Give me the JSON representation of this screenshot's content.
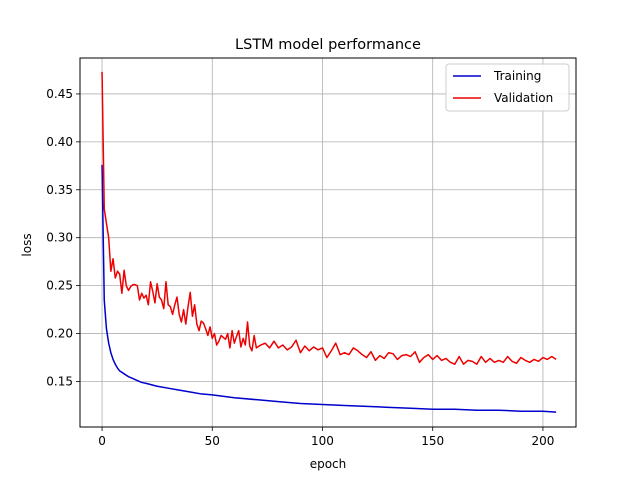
{
  "chart_data": {
    "type": "line",
    "title": "LSTM model performance",
    "xlabel": "epoch",
    "ylabel": "loss",
    "xlim": [
      -10,
      215
    ],
    "ylim": [
      0.1025,
      0.4875
    ],
    "grid": true,
    "legend_position": "top-right",
    "x_ticks": [
      0,
      50,
      100,
      150,
      200
    ],
    "x_tick_labels": [
      "0",
      "50",
      "100",
      "150",
      "200"
    ],
    "y_ticks": [
      0.15,
      0.2,
      0.25,
      0.3,
      0.35,
      0.4,
      0.45
    ],
    "y_tick_labels": [
      "0.15",
      "0.20",
      "0.25",
      "0.30",
      "0.35",
      "0.40",
      "0.45"
    ],
    "series": [
      {
        "name": "Training",
        "color": "#0000cc",
        "x": [
          0,
          1,
          2,
          3,
          4,
          5,
          6,
          7,
          8,
          10,
          12,
          14,
          16,
          18,
          20,
          25,
          30,
          35,
          40,
          45,
          50,
          60,
          70,
          80,
          90,
          100,
          110,
          120,
          130,
          140,
          150,
          160,
          170,
          180,
          190,
          200,
          206
        ],
        "values": [
          0.376,
          0.235,
          0.205,
          0.19,
          0.18,
          0.173,
          0.168,
          0.164,
          0.161,
          0.158,
          0.155,
          0.153,
          0.151,
          0.149,
          0.148,
          0.145,
          0.143,
          0.141,
          0.139,
          0.137,
          0.136,
          0.133,
          0.131,
          0.129,
          0.127,
          0.126,
          0.125,
          0.124,
          0.123,
          0.122,
          0.121,
          0.121,
          0.12,
          0.12,
          0.119,
          0.119,
          0.118
        ]
      },
      {
        "name": "Validation",
        "color": "#ee0000",
        "x": [
          0,
          1,
          2,
          3,
          4,
          5,
          6,
          7,
          8,
          9,
          10,
          11,
          12,
          13,
          14,
          15,
          16,
          17,
          18,
          19,
          20,
          21,
          22,
          23,
          24,
          25,
          26,
          27,
          28,
          29,
          30,
          31,
          32,
          33,
          34,
          35,
          36,
          37,
          38,
          39,
          40,
          41,
          42,
          43,
          44,
          45,
          46,
          47,
          48,
          49,
          50,
          51,
          52,
          53,
          54,
          55,
          56,
          57,
          58,
          59,
          60,
          61,
          62,
          63,
          64,
          65,
          66,
          67,
          68,
          69,
          70,
          72,
          74,
          76,
          78,
          80,
          82,
          84,
          86,
          88,
          90,
          92,
          94,
          96,
          98,
          100,
          102,
          104,
          106,
          108,
          110,
          112,
          114,
          116,
          118,
          120,
          122,
          124,
          126,
          128,
          130,
          132,
          134,
          136,
          138,
          140,
          142,
          144,
          146,
          148,
          150,
          152,
          154,
          156,
          158,
          160,
          162,
          164,
          166,
          168,
          170,
          172,
          174,
          176,
          178,
          180,
          182,
          184,
          186,
          188,
          190,
          192,
          194,
          196,
          198,
          200,
          202,
          204,
          206
        ],
        "values": [
          0.473,
          0.33,
          0.315,
          0.3,
          0.265,
          0.278,
          0.258,
          0.265,
          0.262,
          0.242,
          0.266,
          0.25,
          0.245,
          0.249,
          0.251,
          0.251,
          0.25,
          0.235,
          0.242,
          0.237,
          0.24,
          0.23,
          0.254,
          0.244,
          0.232,
          0.252,
          0.238,
          0.235,
          0.226,
          0.254,
          0.23,
          0.228,
          0.22,
          0.23,
          0.238,
          0.22,
          0.212,
          0.225,
          0.21,
          0.228,
          0.243,
          0.218,
          0.23,
          0.21,
          0.203,
          0.213,
          0.211,
          0.205,
          0.198,
          0.207,
          0.195,
          0.2,
          0.188,
          0.192,
          0.198,
          0.196,
          0.194,
          0.2,
          0.185,
          0.203,
          0.19,
          0.197,
          0.203,
          0.186,
          0.195,
          0.188,
          0.212,
          0.187,
          0.182,
          0.198,
          0.185,
          0.188,
          0.19,
          0.185,
          0.192,
          0.185,
          0.188,
          0.183,
          0.186,
          0.193,
          0.18,
          0.187,
          0.182,
          0.186,
          0.183,
          0.185,
          0.175,
          0.182,
          0.19,
          0.178,
          0.18,
          0.178,
          0.185,
          0.182,
          0.178,
          0.175,
          0.181,
          0.172,
          0.177,
          0.174,
          0.18,
          0.179,
          0.173,
          0.177,
          0.178,
          0.176,
          0.181,
          0.17,
          0.175,
          0.178,
          0.173,
          0.177,
          0.172,
          0.174,
          0.17,
          0.168,
          0.176,
          0.168,
          0.172,
          0.171,
          0.168,
          0.176,
          0.17,
          0.174,
          0.17,
          0.172,
          0.17,
          0.176,
          0.171,
          0.169,
          0.175,
          0.172,
          0.17,
          0.173,
          0.171,
          0.175,
          0.173,
          0.176,
          0.173
        ]
      }
    ]
  }
}
